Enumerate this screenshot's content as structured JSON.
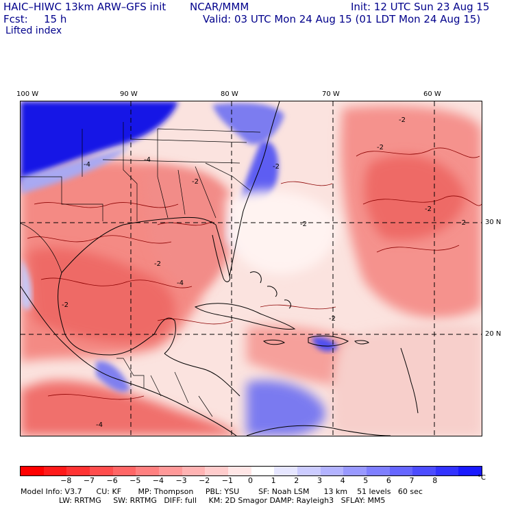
{
  "header": {
    "model": "HAIC–HIWC 13km ARW–GFS init",
    "org": "NCAR/MMM",
    "init": "Init: 12 UTC Sun 23 Aug 15",
    "fcst_label": "Fcst:",
    "fcst_value": "15 h",
    "valid": "Valid: 03 UTC Mon 24 Aug 15 (01 LDT Mon 24 Aug 15)",
    "field": "Lifted index"
  },
  "map": {
    "region": "Gulf of Mexico / Caribbean / Western Atlantic",
    "longitude_labels": [
      "100 W",
      "90 W",
      "80 W",
      "70 W",
      "60 W"
    ],
    "latitude_labels": [
      "30 N",
      "20 N"
    ],
    "contour_labels": [
      "-4",
      "-2",
      "-2",
      "-2",
      "-2",
      "-4",
      "-2",
      "-2",
      "-2",
      "-2",
      "-4",
      "-2",
      "-4",
      "-2"
    ],
    "colors": {
      "land_border": "#000000",
      "grid_lines": "#000000",
      "contour": "#8b0000"
    }
  },
  "colorbar": {
    "ticks": [
      "−8",
      "−7",
      "−6",
      "−5",
      "−4",
      "−3",
      "−2",
      "−1",
      "0",
      "1",
      "2",
      "3",
      "4",
      "5",
      "6",
      "7",
      "8"
    ],
    "unit": "°C",
    "colors": [
      "#ff0000",
      "#ff1a1a",
      "#ff3333",
      "#ff4d4d",
      "#ff6666",
      "#ff8080",
      "#ff9999",
      "#ffb3b3",
      "#ffcccc",
      "#ffe6e6",
      "#ffffff",
      "#e6e6ff",
      "#ccccff",
      "#b3b3ff",
      "#9999ff",
      "#7f7fff",
      "#6666ff",
      "#4d4dff",
      "#3333ff",
      "#1a1aff"
    ]
  },
  "model_info": {
    "line1": "Model Info: V3.7      CU: KF       MP: Thompson     PBL: YSU        SF: Noah LSM      13 km    51 levels   60 sec",
    "line2": "                LW: RRTMG     SW: RRTMG   DIFF: full     KM: 2D Smagor DAMP: Rayleigh3   SFLAY: MM5"
  }
}
